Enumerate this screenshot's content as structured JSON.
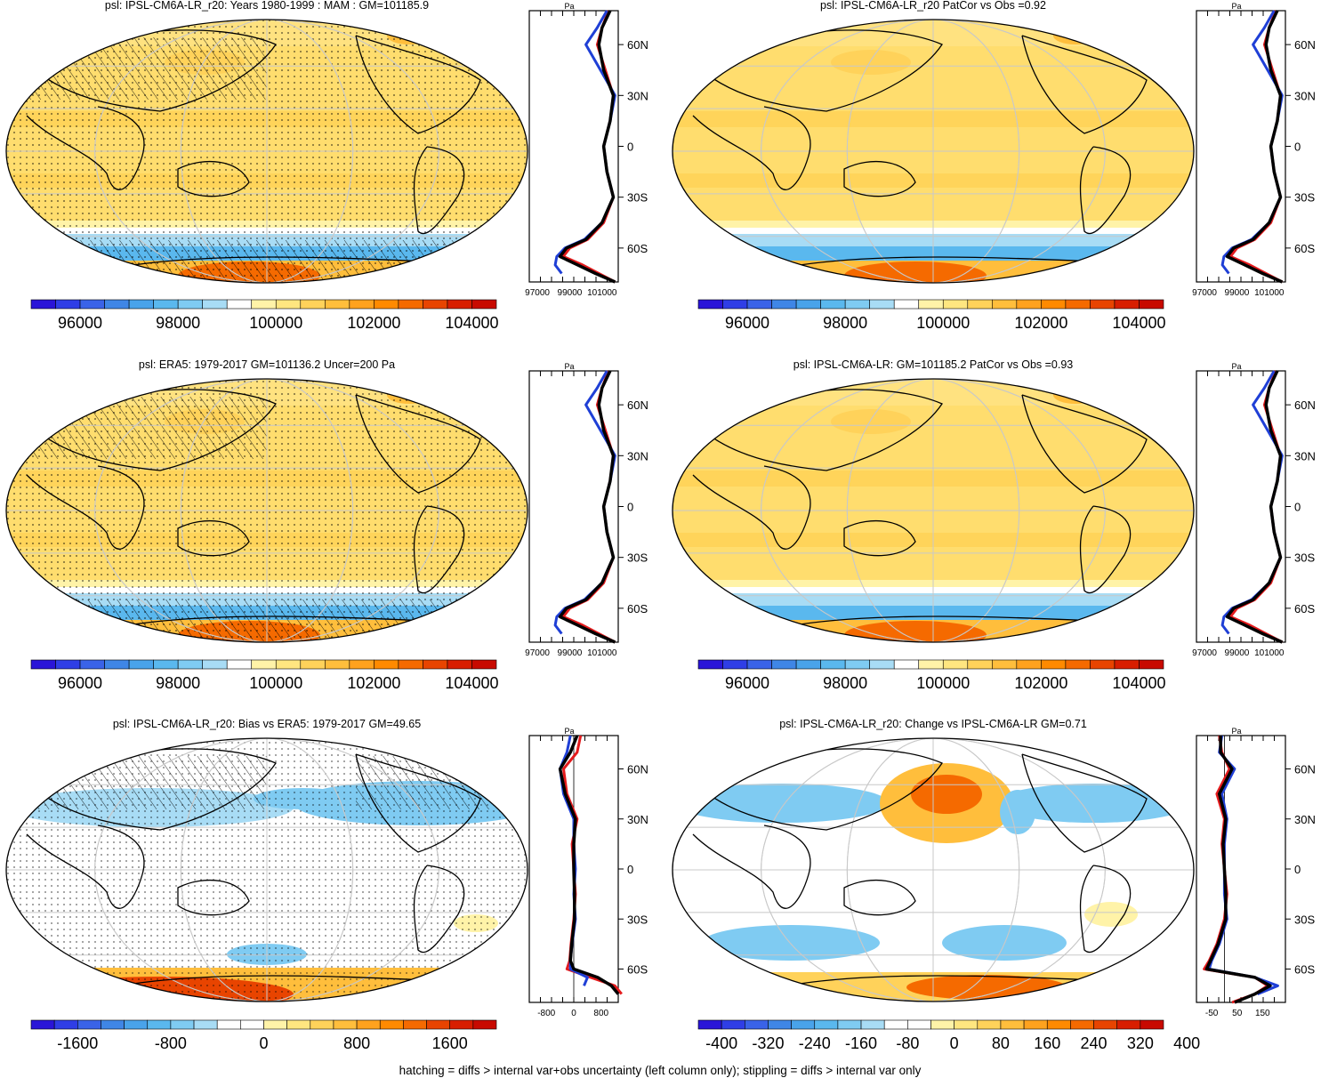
{
  "footer": "hatching = diffs > internal var+obs uncertainty (left column only); stippling = diffs > internal var only",
  "colors": {
    "line_model": "#e41a1c",
    "line_obs": "#1f3fd6",
    "line_mean": "#000000",
    "abs_scale": [
      "#2a15d8",
      "#2f3ee6",
      "#3a63e8",
      "#3f86e6",
      "#49a3ea",
      "#5ab8ee",
      "#7fcbf2",
      "#a8dcf5",
      "#ffffff",
      "#fff3a8",
      "#ffe680",
      "#ffd25a",
      "#ffbe3c",
      "#ffa21e",
      "#ff8a00",
      "#f56a00",
      "#e84400",
      "#d81e00",
      "#c80a00"
    ],
    "diff_scale": [
      "#2a15d8",
      "#2f3ee6",
      "#3a63e8",
      "#3f86e6",
      "#49a3ea",
      "#5ab8ee",
      "#7fcbf2",
      "#a8dcf5",
      "#ffffff",
      "#ffffff",
      "#fff3a8",
      "#ffe680",
      "#ffd25a",
      "#ffbe3c",
      "#ffa21e",
      "#ff8a00",
      "#f56a00",
      "#e84400",
      "#d81e00",
      "#c80a00"
    ]
  },
  "chart_data": [
    {
      "type": "heatmap",
      "title": "psl: IPSL-CM6A-LR_r20: Years 1980-1999 : MAM : GM=101185.9",
      "colorbar_labels": [
        "96000",
        "98000",
        "100000",
        "102000",
        "104000"
      ],
      "profile": {
        "xunit": "Pa",
        "xticks": [
          "97000",
          "99000",
          "101000"
        ],
        "xlim": [
          96500,
          102000
        ],
        "ylabels": [
          "60N",
          "30N",
          "0",
          "30S",
          "60S"
        ],
        "lat": [
          80,
          70,
          60,
          45,
          30,
          15,
          0,
          -15,
          -30,
          -45,
          -55,
          -60,
          -65,
          -70,
          -75,
          -80
        ],
        "series": [
          {
            "name": "model",
            "color": "line_model",
            "values": [
              101400,
              101000,
              100700,
              101200,
              101700,
              101500,
              101100,
              101300,
              101700,
              101100,
              100100,
              99000,
              98600,
              99800,
              100800,
              101800
            ]
          },
          {
            "name": "obs",
            "color": "line_obs",
            "values": [
              101300,
              100700,
              100000,
              100900,
              101800,
              101500,
              101100,
              101300,
              101700,
              101000,
              99900,
              98700,
              98200,
              98100,
              98500,
              null
            ]
          },
          {
            "name": "mean",
            "color": "line_mean",
            "values": [
              101500,
              101000,
              100800,
              101100,
              101700,
              101500,
              101100,
              101300,
              101700,
              101000,
              100000,
              98800,
              98400,
              99500,
              100600,
              101800
            ]
          }
        ]
      }
    },
    {
      "type": "heatmap",
      "title": "psl: IPSL-CM6A-LR_r20 PatCor vs Obs =0.92",
      "colorbar_labels": [
        "96000",
        "98000",
        "100000",
        "102000",
        "104000"
      ],
      "profile": {
        "xunit": "Pa",
        "xticks": [
          "97000",
          "99000",
          "101000"
        ],
        "xlim": [
          96500,
          102000
        ],
        "ylabels": [
          "60N",
          "30N",
          "0",
          "30S",
          "60S"
        ],
        "lat": [
          80,
          70,
          60,
          45,
          30,
          15,
          0,
          -15,
          -30,
          -45,
          -55,
          -60,
          -65,
          -70,
          -75,
          -80
        ],
        "series": [
          {
            "name": "model",
            "color": "line_model",
            "values": [
              101400,
              101000,
              100700,
              101200,
              101700,
              101500,
              101100,
              101300,
              101700,
              101100,
              100100,
              99000,
              98600,
              99800,
              100800,
              101800
            ]
          },
          {
            "name": "obs",
            "color": "line_obs",
            "values": [
              101300,
              100700,
              100000,
              100900,
              101800,
              101500,
              101100,
              101300,
              101700,
              101000,
              99900,
              98700,
              98200,
              98100,
              98500,
              null
            ]
          },
          {
            "name": "mean",
            "color": "line_mean",
            "values": [
              101500,
              101000,
              100800,
              101100,
              101700,
              101500,
              101100,
              101300,
              101700,
              101000,
              100000,
              98800,
              98400,
              99500,
              100600,
              101800
            ]
          }
        ]
      }
    },
    {
      "type": "heatmap",
      "title": "psl: ERA5: 1979-2017 GM=101136.2 Uncer=200 Pa",
      "colorbar_labels": [
        "96000",
        "98000",
        "100000",
        "102000",
        "104000"
      ],
      "profile": {
        "xunit": "Pa",
        "xticks": [
          "97000",
          "99000",
          "101000"
        ],
        "xlim": [
          96500,
          102000
        ],
        "ylabels": [
          "60N",
          "30N",
          "0",
          "30S",
          "60S"
        ],
        "lat": [
          80,
          70,
          60,
          45,
          30,
          15,
          0,
          -15,
          -30,
          -45,
          -55,
          -60,
          -65,
          -70,
          -75,
          -80
        ],
        "series": [
          {
            "name": "model",
            "color": "line_model",
            "values": [
              101400,
              101000,
              100700,
              101200,
              101700,
              101500,
              101100,
              101300,
              101700,
              101100,
              100100,
              99000,
              98600,
              99800,
              100800,
              101800
            ]
          },
          {
            "name": "obs",
            "color": "line_obs",
            "values": [
              101300,
              100700,
              100000,
              100900,
              101800,
              101500,
              101100,
              101300,
              101700,
              101000,
              99900,
              98700,
              98200,
              98100,
              98500,
              null
            ]
          },
          {
            "name": "mean",
            "color": "line_mean",
            "values": [
              101500,
              101000,
              100800,
              101100,
              101700,
              101500,
              101100,
              101300,
              101700,
              101000,
              100000,
              98800,
              98400,
              99500,
              100600,
              101800
            ]
          }
        ]
      }
    },
    {
      "type": "heatmap",
      "title": "psl: IPSL-CM6A-LR: GM=101185.2 PatCor vs Obs =0.93",
      "colorbar_labels": [
        "96000",
        "98000",
        "100000",
        "102000",
        "104000"
      ],
      "profile": {
        "xunit": "Pa",
        "xticks": [
          "97000",
          "99000",
          "101000"
        ],
        "xlim": [
          96500,
          102000
        ],
        "ylabels": [
          "60N",
          "30N",
          "0",
          "30S",
          "60S"
        ],
        "lat": [
          80,
          70,
          60,
          45,
          30,
          15,
          0,
          -15,
          -30,
          -45,
          -55,
          -60,
          -65,
          -70,
          -75,
          -80
        ],
        "series": [
          {
            "name": "model",
            "color": "line_model",
            "values": [
              101400,
              101000,
              100700,
              101200,
              101700,
              101500,
              101100,
              101300,
              101700,
              101100,
              100100,
              99000,
              98600,
              99800,
              100800,
              101800
            ]
          },
          {
            "name": "obs",
            "color": "line_obs",
            "values": [
              101300,
              100700,
              100000,
              100900,
              101800,
              101500,
              101100,
              101300,
              101700,
              101000,
              99900,
              98700,
              98200,
              98100,
              98500,
              null
            ]
          },
          {
            "name": "mean",
            "color": "line_mean",
            "values": [
              101500,
              101000,
              100800,
              101100,
              101700,
              101500,
              101100,
              101300,
              101700,
              101000,
              100000,
              98800,
              98400,
              99500,
              100600,
              101800
            ]
          }
        ]
      }
    },
    {
      "type": "heatmap",
      "title": "psl: IPSL-CM6A-LR_r20: Bias vs ERA5: 1979-2017 GM=49.65",
      "colorbar_labels": [
        "-1600",
        "-800",
        "0",
        "800",
        "1600"
      ],
      "profile": {
        "xunit": "Pa",
        "xticks": [
          "-800",
          "0",
          "800"
        ],
        "xlim": [
          -1300,
          1300
        ],
        "ylabels": [
          "60N",
          "30N",
          "0",
          "30S",
          "60S"
        ],
        "lat": [
          80,
          70,
          60,
          45,
          30,
          15,
          0,
          -15,
          -30,
          -45,
          -55,
          -60,
          -65,
          -70,
          -75,
          -80
        ],
        "series": [
          {
            "name": "model",
            "color": "line_model",
            "values": [
              200,
              100,
              -300,
              -200,
              100,
              -50,
              0,
              50,
              0,
              -80,
              -120,
              -200,
              500,
              1200,
              1400,
              null
            ]
          },
          {
            "name": "obs",
            "color": "line_obs",
            "values": [
              -100,
              -200,
              -400,
              -300,
              0,
              0,
              50,
              0,
              50,
              -50,
              -100,
              -100,
              400,
              300,
              null,
              null
            ]
          },
          {
            "name": "mean",
            "color": "line_mean",
            "values": [
              100,
              -100,
              -400,
              -250,
              50,
              0,
              0,
              20,
              20,
              -60,
              -100,
              0,
              700,
              1100,
              1300,
              null
            ]
          }
        ]
      }
    },
    {
      "type": "heatmap",
      "title": "psl: IPSL-CM6A-LR_r20: Change vs IPSL-CM6A-LR GM=0.71",
      "colorbar_labels": [
        "-400",
        "-320",
        "-240",
        "-160",
        "-80",
        "0",
        "80",
        "160",
        "240",
        "320",
        "400"
      ],
      "profile": {
        "xunit": "Pa",
        "xticks": [
          "-50",
          "50",
          "150"
        ],
        "xlim": [
          -110,
          240
        ],
        "ylabels": [
          "60N",
          "30N",
          "0",
          "30S",
          "60S"
        ],
        "lat": [
          80,
          70,
          60,
          45,
          30,
          15,
          0,
          -15,
          -30,
          -45,
          -55,
          -60,
          -65,
          -70,
          -75,
          -80
        ],
        "series": [
          {
            "name": "model",
            "color": "line_model",
            "values": [
              -20,
              -10,
              20,
              -30,
              0,
              -10,
              0,
              10,
              0,
              -30,
              -60,
              -80,
              120,
              170,
              120,
              30
            ]
          },
          {
            "name": "obs",
            "color": "line_obs",
            "values": [
              -10,
              -20,
              40,
              -10,
              10,
              0,
              0,
              0,
              10,
              -20,
              -50,
              -60,
              120,
              210,
              130,
              null
            ]
          },
          {
            "name": "mean",
            "color": "line_mean",
            "values": [
              -15,
              -15,
              30,
              -20,
              5,
              -5,
              0,
              5,
              5,
              -25,
              -55,
              -70,
              120,
              180,
              120,
              40
            ]
          }
        ]
      }
    }
  ]
}
